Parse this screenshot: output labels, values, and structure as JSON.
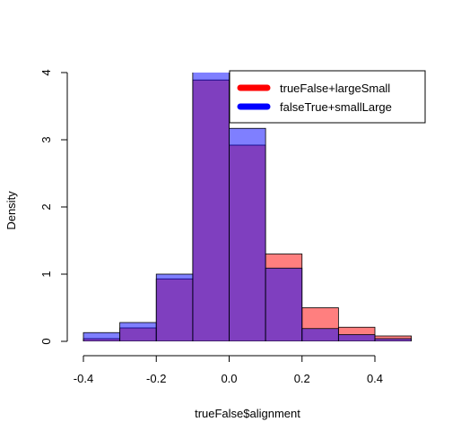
{
  "chart_data": {
    "type": "bar",
    "title": "",
    "xlabel": "trueFalse$alignment",
    "ylabel": "Density",
    "xlim": [
      -0.4,
      0.5
    ],
    "ylim": [
      0,
      4
    ],
    "x_ticks": [
      -0.4,
      -0.2,
      0.0,
      0.2,
      0.4
    ],
    "x_tick_labels": [
      "-0.4",
      "-0.2",
      "0.0",
      "0.2",
      "0.4"
    ],
    "y_ticks": [
      0,
      1,
      2,
      3,
      4
    ],
    "y_tick_labels": [
      "0",
      "1",
      "2",
      "3",
      "4"
    ],
    "bin_edges": [
      -0.4,
      -0.3,
      -0.2,
      -0.1,
      0.0,
      0.1,
      0.2,
      0.3,
      0.4,
      0.5
    ],
    "legend_position": "top-right",
    "series": [
      {
        "name": "trueFalse+largeSmall",
        "color": "#ff0000",
        "fill": "rgba(255,0,0,0.5)",
        "values": [
          0.04,
          0.2,
          0.93,
          3.89,
          2.92,
          1.3,
          0.5,
          0.21,
          0.08
        ]
      },
      {
        "name": "falseTrue+smallLarge",
        "color": "#0000ff",
        "fill": "rgba(0,0,255,0.5)",
        "values": [
          0.13,
          0.28,
          1.0,
          4.1,
          3.17,
          1.09,
          0.19,
          0.1,
          0.04
        ]
      }
    ]
  }
}
